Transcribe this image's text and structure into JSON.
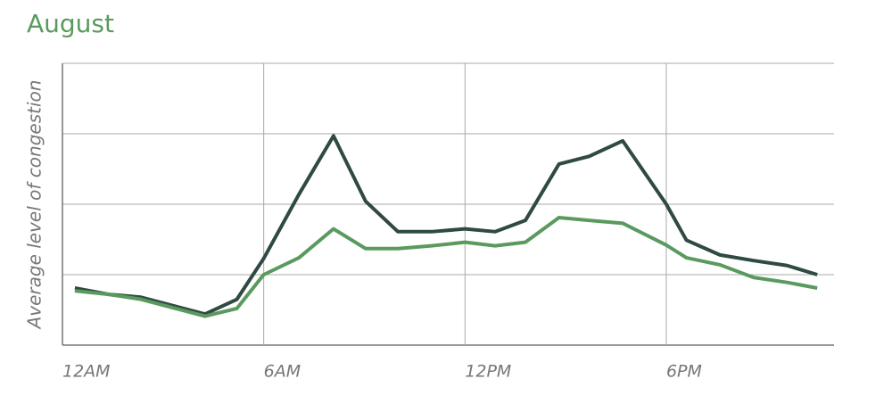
{
  "chart_data": {
    "type": "line",
    "title": "August",
    "y_label": "Average level of congestion",
    "x": [
      0.37,
      1.38,
      2.34,
      4.25,
      5.2,
      6.0,
      7.05,
      8.08,
      9.04,
      10.0,
      11.0,
      12.0,
      12.9,
      13.8,
      14.8,
      15.7,
      16.7,
      18.0,
      18.6,
      19.6,
      20.6,
      21.6,
      22.5
    ],
    "series": [
      {
        "color": "#2e4a42",
        "values": [
          0.81,
          0.72,
          0.68,
          0.44,
          0.65,
          1.23,
          2.14,
          2.97,
          2.04,
          1.61,
          1.61,
          1.65,
          1.61,
          1.77,
          2.57,
          2.68,
          2.9,
          2.0,
          1.49,
          1.28,
          1.2,
          1.13,
          1.0
        ]
      },
      {
        "color": "#5a9a5e",
        "values": [
          0.77,
          0.72,
          0.65,
          0.41,
          0.52,
          1.0,
          1.24,
          1.65,
          1.37,
          1.37,
          1.41,
          1.46,
          1.41,
          1.46,
          1.81,
          1.77,
          1.73,
          1.42,
          1.24,
          1.14,
          0.96,
          0.89,
          0.81
        ]
      }
    ],
    "xlim": [
      0,
      23
    ],
    "xticks": [
      {
        "value": 0,
        "label": "12AM"
      },
      {
        "value": 6,
        "label": "6AM"
      },
      {
        "value": 12,
        "label": "12PM"
      },
      {
        "value": 18,
        "label": "6PM"
      }
    ],
    "ylim": [
      0,
      4
    ],
    "yticks": [
      0,
      1,
      2,
      3,
      4
    ],
    "grid": true
  }
}
